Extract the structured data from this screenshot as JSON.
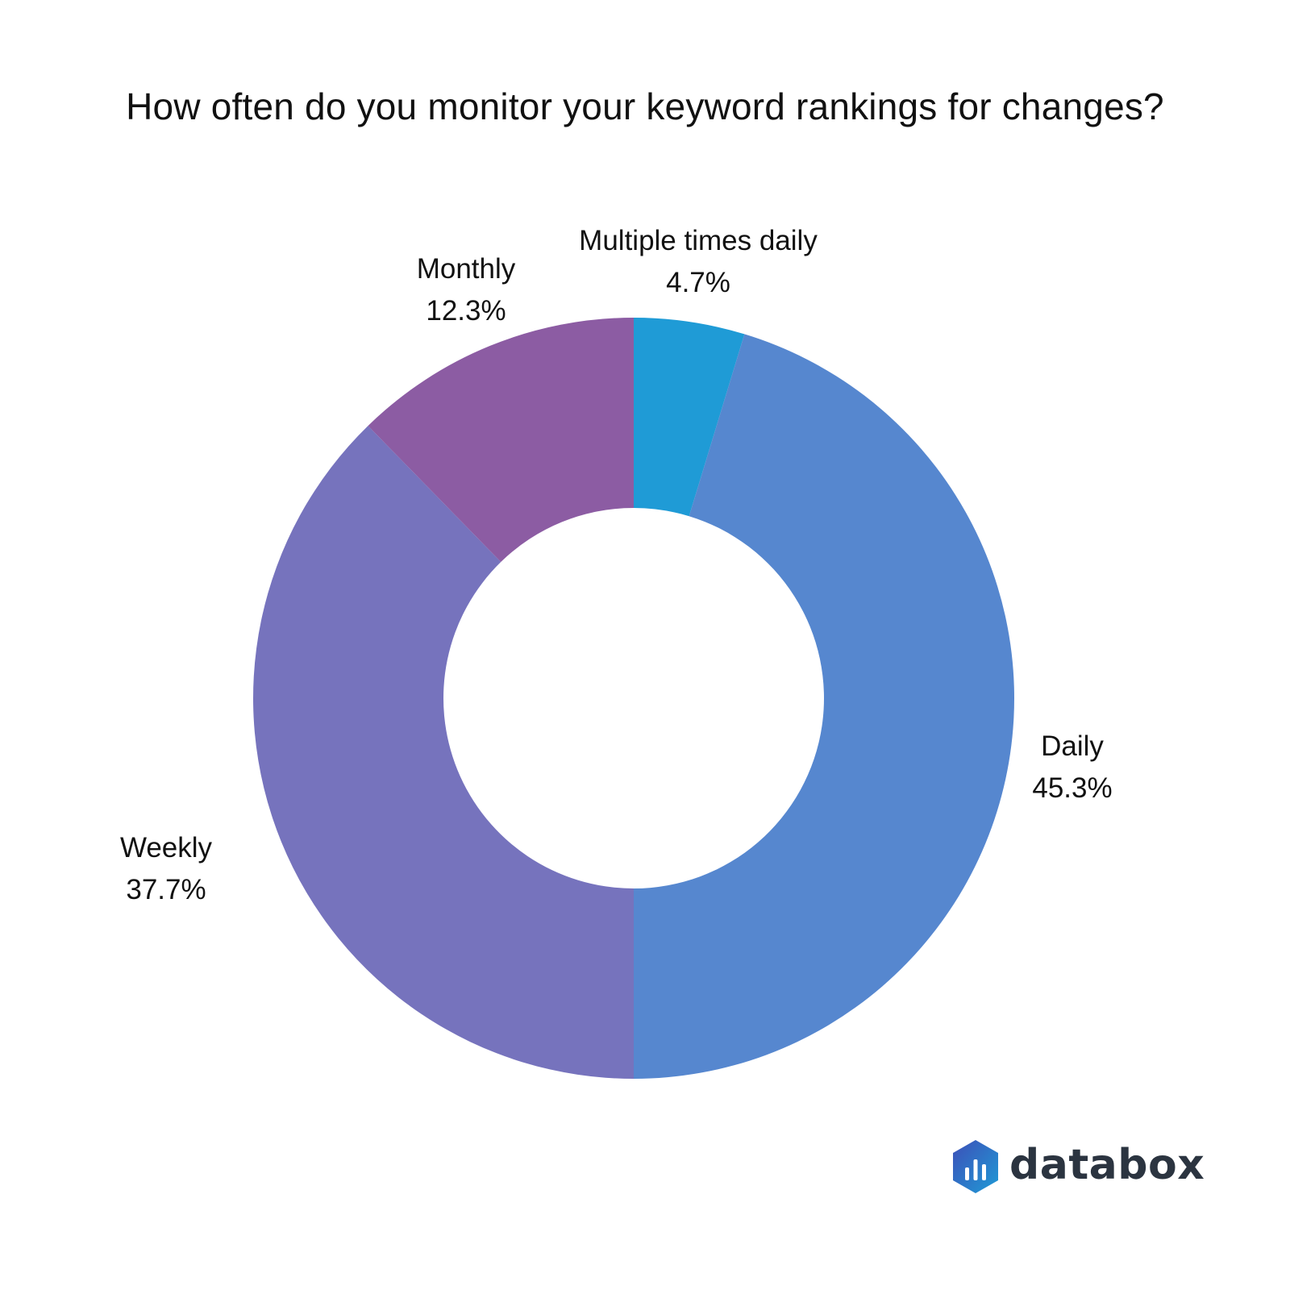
{
  "chart_data": {
    "type": "pie",
    "title": "How often do you monitor your keyword rankings for changes?",
    "donut": true,
    "slices": [
      {
        "label": "Multiple times daily",
        "value": 4.7,
        "value_label": "4.7%",
        "color": "#1f9bd6"
      },
      {
        "label": "Daily",
        "value": 45.3,
        "value_label": "45.3%",
        "color": "#5687cf"
      },
      {
        "label": "Weekly",
        "value": 37.7,
        "value_label": "37.7%",
        "color": "#7673bd"
      },
      {
        "label": "Monthly",
        "value": 12.3,
        "value_label": "12.3%",
        "color": "#8c5ca3"
      }
    ],
    "legend": "none"
  },
  "brand": {
    "name": "databox",
    "icon": "databox-logo-icon",
    "colors": [
      "#3d5cc2",
      "#1f9bd6"
    ]
  }
}
